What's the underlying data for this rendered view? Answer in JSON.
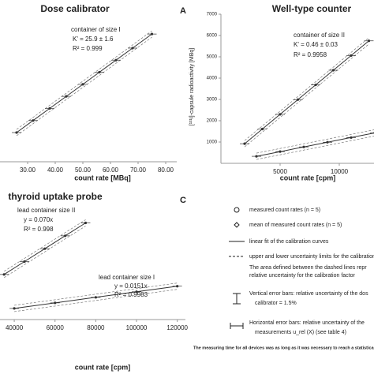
{
  "chart_data": [
    {
      "type": "scatter",
      "title": "Dose calibrator",
      "x_label": "count rate [MBq]",
      "annotations": [
        "container of size I",
        "K' = 25.9 ± 1.6",
        "R² = 0.999"
      ],
      "xlim": [
        20,
        84
      ],
      "ylim": [
        0,
        2000
      ],
      "xticks": [
        {
          "value": 30,
          "label": "30.00"
        },
        {
          "value": 40,
          "label": "40.00"
        },
        {
          "value": 50,
          "label": "50.00"
        },
        {
          "value": 60,
          "label": "60.00"
        },
        {
          "value": 70,
          "label": "70.00"
        },
        {
          "value": 80,
          "label": "80.00"
        }
      ],
      "series": [
        {
          "color": "#333333",
          "x": [
            26,
            32,
            38,
            44,
            50,
            56,
            62,
            68,
            75
          ],
          "values": [
            400,
            565,
            731,
            896,
            1061,
            1227,
            1392,
            1557,
            1750
          ]
        }
      ]
    },
    {
      "type": "scatter",
      "title": "Well-type counter",
      "panel_label": "A",
      "x_label": "count rate [cpm]",
      "y_label": "[¹³¹I]-capsule radioactivity [MBq]",
      "annotations": [
        "container of size II",
        "K' = 0.46 ± 0.03",
        "R² = 0.9958"
      ],
      "xlim": [
        0,
        13000
      ],
      "ylim": [
        0,
        7000
      ],
      "xticks": [
        5000,
        10000
      ],
      "yticks": [
        1000,
        2000,
        3000,
        4000,
        5000,
        6000,
        7000
      ],
      "series": [
        {
          "color": "#333333",
          "x": [
            2000,
            3500,
            5000,
            6500,
            8000,
            9500,
            11000,
            12500
          ],
          "values": [
            920,
            1610,
            2300,
            2990,
            3680,
            4370,
            5060,
            5750
          ]
        },
        {
          "color": "#333333",
          "x": [
            3000,
            5000,
            7000,
            9000,
            11000,
            13000
          ],
          "values": [
            330,
            550,
            770,
            990,
            1210,
            1430
          ]
        }
      ]
    },
    {
      "type": "scatter",
      "title": "thyroid uptake probe",
      "x_label": "count rate [cpm]",
      "annotations": [
        "lead container size II",
        "y = 0.070x",
        "R² = 0.998",
        "lead container size I",
        "y = 0.0151x",
        "R² = 0.9983"
      ],
      "xlim": [
        33000,
        124000
      ],
      "ylim": [
        0,
        6000
      ],
      "xticks": [
        40000,
        60000,
        80000,
        100000,
        120000
      ],
      "series": [
        {
          "color": "#333333",
          "x": [
            35000,
            45000,
            55000,
            65000,
            75000
          ],
          "values": [
            2450,
            3150,
            3850,
            4550,
            5250
          ]
        },
        {
          "color": "#333333",
          "x": [
            40000,
            60000,
            80000,
            100000,
            120000
          ],
          "values": [
            604,
            906,
            1208,
            1510,
            1812
          ]
        }
      ]
    }
  ],
  "legend_panel": {
    "panel_label": "C",
    "items": [
      "measured count rates (n = 5)",
      "mean of measured count rates (n = 5)",
      "linear fit of the calibration curves",
      "upper and lower uncertainty limits for the calibration",
      "The area defined between the dashed lines repr",
      "relative uncertainty for the calibration factor",
      "Vertical error bars: relative uncertainty of the dos",
      "calibrator = 1.5%",
      "Horizontal error bars: relative uncertainty of the",
      "measurements u_rel (X) (see table 4)"
    ],
    "footnote": "The measuring time for all devices was as long as it was necessary to reach a statistical"
  }
}
